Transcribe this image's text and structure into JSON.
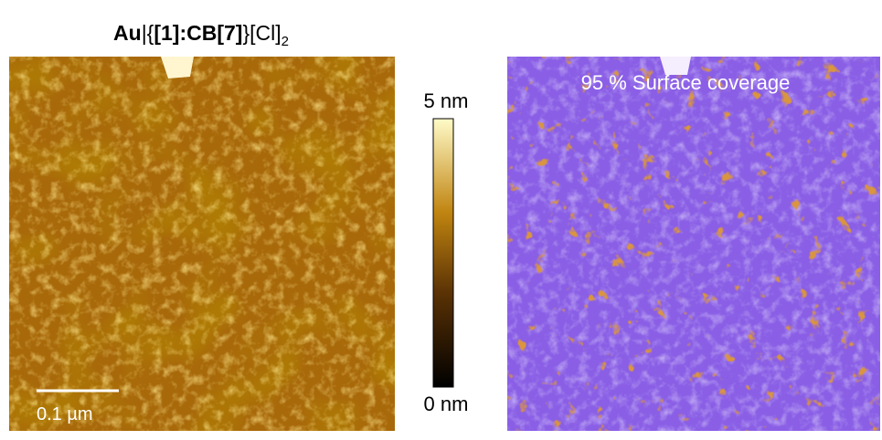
{
  "figure": {
    "title": {
      "parts": [
        "Au",
        "|{",
        "[1]:CB[7]",
        "}[Cl]",
        "2"
      ]
    },
    "left_image": {
      "scale_bar": "0.1 µm"
    },
    "colorbar": {
      "max_label": "5 nm",
      "min_label": "0 nm"
    },
    "right_image": {
      "annotation": "95 % Surface coverage"
    }
  }
}
